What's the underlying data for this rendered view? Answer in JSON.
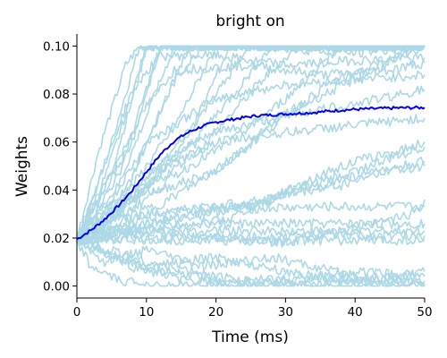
{
  "chart_data": {
    "type": "line",
    "title": "bright on",
    "xlabel": "Time (ms)",
    "ylabel": "Weights",
    "xlim": [
      0,
      50
    ],
    "ylim": [
      -0.005,
      0.105
    ],
    "xticks": [
      0,
      10,
      20,
      30,
      40,
      50
    ],
    "xtick_labels": [
      "0",
      "10",
      "20",
      "30",
      "40",
      "50"
    ],
    "yticks": [
      0.0,
      0.02,
      0.04,
      0.06,
      0.08,
      0.1
    ],
    "ytick_labels": [
      "0.00",
      "0.02",
      "0.04",
      "0.06",
      "0.08",
      "0.10"
    ],
    "grid": false,
    "legend": "none",
    "colors": {
      "traces": "#add8e6",
      "mean": "#0000ee",
      "axes": "#000000"
    },
    "series": [
      {
        "role": "mean",
        "x": [
          0,
          2,
          4,
          6,
          8,
          10,
          12,
          14,
          16,
          18,
          20,
          22,
          24,
          26,
          28,
          30,
          32,
          34,
          36,
          38,
          40,
          42,
          44,
          46,
          48,
          50
        ],
        "values": [
          0.0195,
          0.0232,
          0.0278,
          0.0335,
          0.04,
          0.0475,
          0.0548,
          0.0605,
          0.064,
          0.0665,
          0.0683,
          0.0693,
          0.0702,
          0.071,
          0.0713,
          0.0717,
          0.072,
          0.0723,
          0.0728,
          0.0733,
          0.0736,
          0.0738,
          0.074,
          0.0742,
          0.0743,
          0.0743
        ]
      },
      {
        "role": "trace",
        "x": [
          0,
          4,
          8,
          9,
          50
        ],
        "values": [
          0.0195,
          0.05,
          0.09,
          0.1,
          0.1
        ]
      },
      {
        "role": "trace",
        "x": [
          0,
          3,
          7,
          9,
          50
        ],
        "values": [
          0.0195,
          0.055,
          0.092,
          0.1,
          0.1
        ]
      },
      {
        "role": "trace",
        "x": [
          0,
          5,
          9,
          10,
          50
        ],
        "values": [
          0.0195,
          0.048,
          0.088,
          0.1,
          0.1
        ]
      },
      {
        "role": "trace",
        "x": [
          0,
          4,
          8,
          10,
          50
        ],
        "values": [
          0.0195,
          0.045,
          0.08,
          0.1,
          0.1
        ]
      },
      {
        "role": "trace",
        "x": [
          0,
          6,
          10,
          12,
          50
        ],
        "values": [
          0.0195,
          0.046,
          0.082,
          0.1,
          0.1
        ]
      },
      {
        "role": "trace",
        "x": [
          0,
          6,
          11,
          14,
          50
        ],
        "values": [
          0.0195,
          0.042,
          0.078,
          0.1,
          0.1
        ]
      },
      {
        "role": "trace",
        "x": [
          0,
          7,
          12,
          16,
          50
        ],
        "values": [
          0.0195,
          0.04,
          0.072,
          0.1,
          0.1
        ]
      },
      {
        "role": "trace",
        "x": [
          0,
          5,
          10,
          14,
          18,
          50
        ],
        "values": [
          0.0195,
          0.036,
          0.06,
          0.085,
          0.1,
          0.1
        ]
      },
      {
        "role": "trace",
        "x": [
          0,
          8,
          14,
          20,
          50
        ],
        "values": [
          0.0195,
          0.042,
          0.066,
          0.1,
          0.1
        ]
      },
      {
        "role": "trace",
        "x": [
          0,
          9,
          16,
          22,
          50
        ],
        "values": [
          0.0195,
          0.038,
          0.062,
          0.1,
          0.1
        ]
      },
      {
        "role": "trace",
        "x": [
          0,
          6,
          12,
          18,
          25,
          50
        ],
        "values": [
          0.0195,
          0.034,
          0.05,
          0.072,
          0.1,
          0.1
        ]
      },
      {
        "role": "trace",
        "x": [
          0,
          8,
          15,
          22,
          28,
          50
        ],
        "values": [
          0.0195,
          0.036,
          0.055,
          0.078,
          0.1,
          0.1
        ]
      },
      {
        "role": "trace",
        "x": [
          0,
          10,
          18,
          26,
          32,
          50
        ],
        "values": [
          0.0195,
          0.04,
          0.058,
          0.084,
          0.1,
          0.1
        ]
      },
      {
        "role": "trace",
        "x": [
          0,
          8,
          14,
          22,
          30,
          38,
          50
        ],
        "values": [
          0.0195,
          0.032,
          0.046,
          0.06,
          0.078,
          0.1,
          0.1
        ]
      },
      {
        "role": "trace",
        "x": [
          0,
          4,
          8,
          12,
          20,
          30,
          50
        ],
        "values": [
          0.0195,
          0.03,
          0.038,
          0.04,
          0.048,
          0.072,
          0.1
        ]
      },
      {
        "role": "trace",
        "x": [
          0,
          6,
          12,
          20,
          28,
          36,
          50
        ],
        "values": [
          0.0195,
          0.028,
          0.034,
          0.048,
          0.066,
          0.084,
          0.1
        ]
      },
      {
        "role": "trace",
        "x": [
          0,
          8,
          12,
          20,
          30,
          40,
          50
        ],
        "values": [
          0.0195,
          0.082,
          0.096,
          0.096,
          0.092,
          0.094,
          0.095
        ]
      },
      {
        "role": "trace",
        "x": [
          0,
          10,
          14,
          25,
          35,
          45,
          50
        ],
        "values": [
          0.0195,
          0.075,
          0.09,
          0.092,
          0.088,
          0.09,
          0.093
        ]
      },
      {
        "role": "trace",
        "x": [
          0,
          8,
          12,
          25,
          40,
          50
        ],
        "values": [
          0.0195,
          0.06,
          0.1,
          0.1,
          0.097,
          0.1
        ]
      },
      {
        "role": "trace",
        "x": [
          0,
          6,
          10,
          20,
          30,
          40,
          50
        ],
        "values": [
          0.0195,
          0.03,
          0.06,
          0.078,
          0.084,
          0.086,
          0.088
        ]
      },
      {
        "role": "trace",
        "x": [
          0,
          6,
          12,
          20,
          30,
          40,
          50
        ],
        "values": [
          0.0195,
          0.03,
          0.052,
          0.064,
          0.071,
          0.076,
          0.082
        ]
      },
      {
        "role": "trace",
        "x": [
          0,
          6,
          12,
          20,
          30,
          40,
          50
        ],
        "values": [
          0.0195,
          0.026,
          0.048,
          0.06,
          0.064,
          0.067,
          0.07
        ]
      },
      {
        "role": "trace",
        "x": [
          0,
          10,
          20,
          26,
          34,
          40,
          46,
          50
        ],
        "values": [
          0.0195,
          0.026,
          0.032,
          0.034,
          0.045,
          0.052,
          0.056,
          0.06
        ]
      },
      {
        "role": "trace",
        "x": [
          0,
          10,
          22,
          30,
          36,
          42,
          50
        ],
        "values": [
          0.0195,
          0.024,
          0.028,
          0.04,
          0.044,
          0.05,
          0.058
        ]
      },
      {
        "role": "trace",
        "x": [
          0,
          10,
          28,
          30,
          38,
          44,
          50
        ],
        "values": [
          0.0195,
          0.03,
          0.036,
          0.038,
          0.042,
          0.048,
          0.052
        ]
      },
      {
        "role": "trace",
        "x": [
          0,
          8,
          14,
          26,
          30,
          40,
          50
        ],
        "values": [
          0.0195,
          0.026,
          0.032,
          0.033,
          0.038,
          0.046,
          0.05
        ]
      },
      {
        "role": "trace",
        "x": [
          0,
          10,
          22,
          36,
          50
        ],
        "values": [
          0.0195,
          0.026,
          0.032,
          0.033,
          0.033
        ]
      },
      {
        "role": "trace",
        "x": [
          0,
          10,
          20,
          30,
          40,
          50
        ],
        "values": [
          0.0195,
          0.024,
          0.026,
          0.026,
          0.026,
          0.026
        ]
      },
      {
        "role": "trace",
        "x": [
          0,
          10,
          20,
          30,
          40,
          50
        ],
        "values": [
          0.0195,
          0.022,
          0.023,
          0.023,
          0.023,
          0.023
        ]
      },
      {
        "role": "trace",
        "x": [
          0,
          10,
          20,
          30,
          40,
          50
        ],
        "values": [
          0.0195,
          0.02,
          0.02,
          0.021,
          0.021,
          0.021
        ]
      },
      {
        "role": "trace",
        "x": [
          0,
          10,
          20,
          30,
          40,
          50
        ],
        "values": [
          0.0195,
          0.019,
          0.019,
          0.019,
          0.019,
          0.019
        ]
      },
      {
        "role": "trace",
        "x": [
          0,
          12,
          20,
          30,
          40,
          48,
          50
        ],
        "values": [
          0.0195,
          0.022,
          0.02,
          0.018,
          0.024,
          0.03,
          0.036
        ]
      },
      {
        "role": "trace",
        "x": [
          0,
          10,
          20,
          30,
          40,
          50
        ],
        "values": [
          0.0195,
          0.01,
          0.004,
          0.002,
          0.006,
          0.004
        ]
      },
      {
        "role": "trace",
        "x": [
          0,
          8,
          16,
          24,
          32,
          42,
          50
        ],
        "values": [
          0.0195,
          0.008,
          0.002,
          0.0,
          0.004,
          0.002,
          0.006
        ]
      },
      {
        "role": "trace",
        "x": [
          0,
          6,
          14,
          24,
          34,
          44,
          50
        ],
        "values": [
          0.0195,
          0.012,
          0.005,
          0.002,
          0.0,
          0.003,
          0.001
        ]
      },
      {
        "role": "trace",
        "x": [
          0,
          4,
          10,
          20,
          30,
          40,
          50
        ],
        "values": [
          0.0195,
          0.014,
          0.008,
          0.012,
          0.006,
          0.002,
          0.0
        ]
      },
      {
        "role": "trace",
        "x": [
          0,
          2,
          6,
          14,
          30,
          50
        ],
        "values": [
          0.0195,
          0.008,
          0.002,
          0.0,
          0.0,
          0.0
        ]
      },
      {
        "role": "trace",
        "x": [
          0,
          4,
          10,
          18,
          28,
          40,
          50
        ],
        "values": [
          0.0195,
          0.01,
          0.015,
          0.008,
          0.012,
          0.004,
          0.002
        ]
      }
    ]
  }
}
